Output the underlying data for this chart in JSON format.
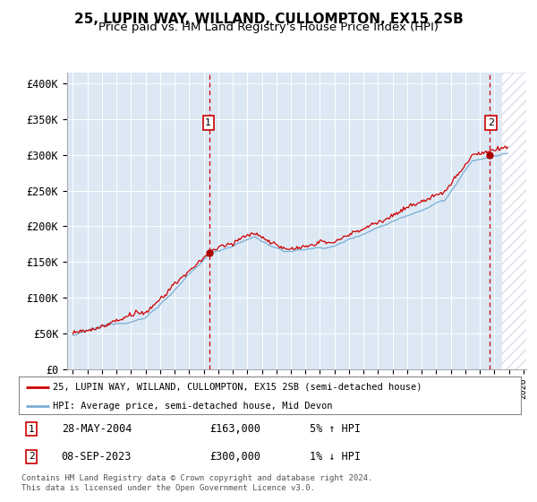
{
  "title": "25, LUPIN WAY, WILLAND, CULLOMPTON, EX15 2SB",
  "subtitle": "Price paid vs. HM Land Registry's House Price Index (HPI)",
  "ylabel_ticks": [
    0,
    50000,
    100000,
    150000,
    200000,
    250000,
    300000,
    350000,
    400000
  ],
  "ylabel_labels": [
    "£0",
    "£50K",
    "£100K",
    "£150K",
    "£200K",
    "£250K",
    "£300K",
    "£350K",
    "£400K"
  ],
  "xlim_lo": 1994.6,
  "xlim_hi": 2026.2,
  "ylim_lo": 0,
  "ylim_hi": 415000,
  "x_ticks": [
    1995,
    1996,
    1997,
    1998,
    1999,
    2000,
    2001,
    2002,
    2003,
    2004,
    2005,
    2006,
    2007,
    2008,
    2009,
    2010,
    2011,
    2012,
    2013,
    2014,
    2015,
    2016,
    2017,
    2018,
    2019,
    2020,
    2021,
    2022,
    2023,
    2024,
    2025,
    2026
  ],
  "hpi_color": "#7aadd4",
  "price_color": "#cc0000",
  "sale1_x": 2004.37,
  "sale1_y": 163000,
  "sale2_x": 2023.67,
  "sale2_y": 300000,
  "legend_line1": "25, LUPIN WAY, WILLAND, CULLOMPTON, EX15 2SB (semi-detached house)",
  "legend_line2": "HPI: Average price, semi-detached house, Mid Devon",
  "note1_label": "1",
  "note1_date": "28-MAY-2004",
  "note1_price": "£163,000",
  "note1_hpi": "5% ↑ HPI",
  "note2_label": "2",
  "note2_date": "08-SEP-2023",
  "note2_price": "£300,000",
  "note2_hpi": "1% ↓ HPI",
  "footer": "Contains HM Land Registry data © Crown copyright and database right 2024.\nThis data is licensed under the Open Government Licence v3.0.",
  "bg_color": "#dce8f4",
  "future_shade_start": 2024.5,
  "title_fontsize": 11,
  "subtitle_fontsize": 9.5
}
